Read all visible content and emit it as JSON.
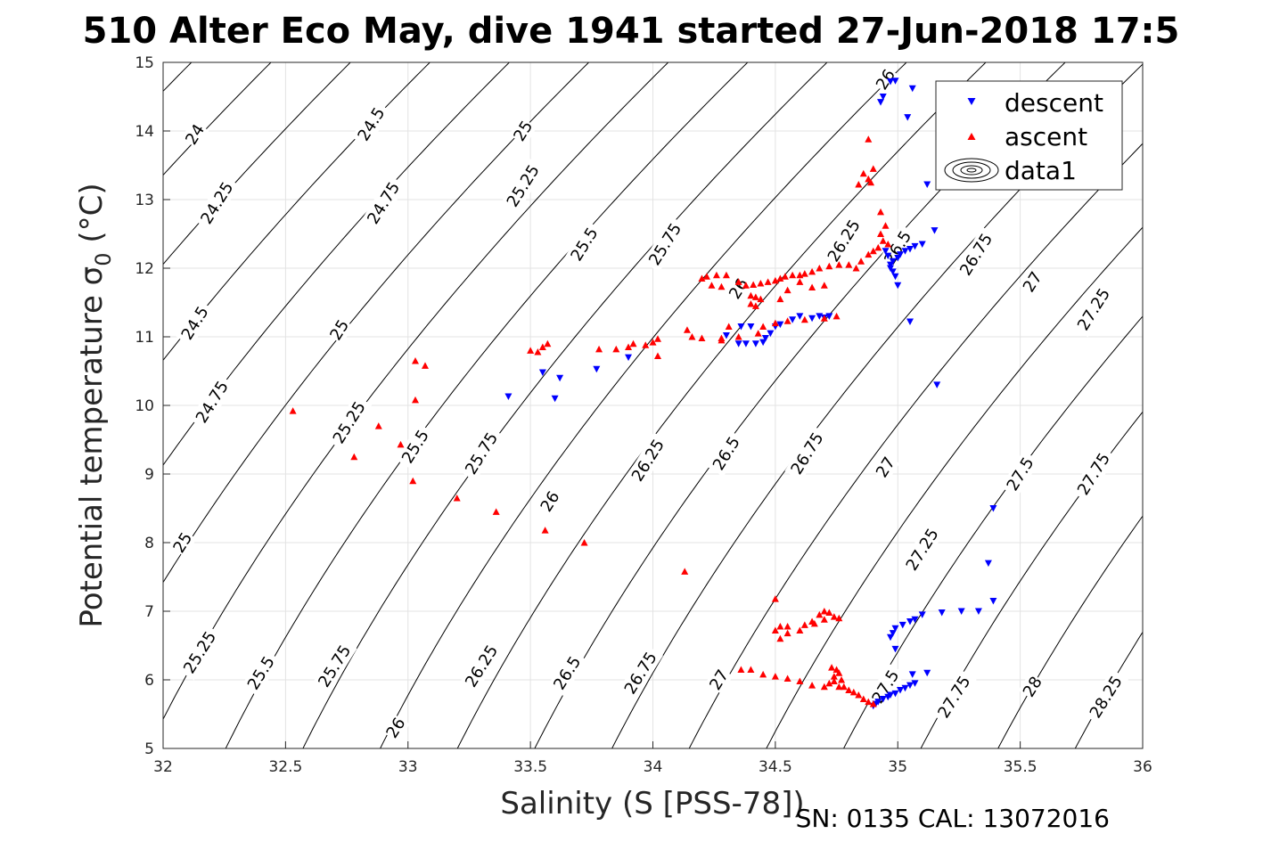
{
  "title": "510 Alter Eco May, dive 1941 started 27-Jun-2018 17:5",
  "footer": "SN: 0135  CAL: 13072016",
  "chart_data": {
    "type": "scatter",
    "xlabel": "Salinity (S [PSS-78])",
    "ylabel": "Potential temperature σ",
    "ylabel_sub": "0",
    "ylabel_unit": " (°C)",
    "xlim": [
      32,
      36
    ],
    "ylim": [
      5,
      15
    ],
    "xticks": [
      "32",
      "32.5",
      "33",
      "33.5",
      "34",
      "34.5",
      "35",
      "35.5",
      "36"
    ],
    "yticks": [
      "5",
      "6",
      "7",
      "8",
      "9",
      "10",
      "11",
      "12",
      "13",
      "14",
      "15"
    ],
    "grid": true,
    "legend_position": "top-right",
    "legend": [
      "descent",
      "ascent",
      "data1"
    ],
    "contours": {
      "levels": [
        "24",
        "24.25",
        "24.5",
        "24.75",
        "25",
        "25.25",
        "25.5",
        "25.75",
        "26",
        "26.25",
        "26.5",
        "26.75",
        "27",
        "27.25",
        "27.5",
        "27.75",
        "28",
        "28.25"
      ],
      "label_positions": [
        [
          "24",
          32.13,
          13.95
        ],
        [
          "24.25",
          32.22,
          12.95
        ],
        [
          "24.5",
          32.13,
          11.2
        ],
        [
          "24.5",
          32.85,
          14.1
        ],
        [
          "24.75",
          32.2,
          10.05
        ],
        [
          "24.75",
          32.9,
          12.95
        ],
        [
          "25",
          32.08,
          8.0
        ],
        [
          "25",
          32.72,
          11.1
        ],
        [
          "25",
          33.47,
          14.0
        ],
        [
          "25.25",
          32.15,
          6.4
        ],
        [
          "25.25",
          32.76,
          9.75
        ],
        [
          "25.25",
          33.47,
          13.2
        ],
        [
          "25.5",
          32.4,
          6.1
        ],
        [
          "25.5",
          33.03,
          9.4
        ],
        [
          "25.5",
          33.72,
          12.35
        ],
        [
          "25.75",
          32.7,
          6.2
        ],
        [
          "25.75",
          33.3,
          9.3
        ],
        [
          "25.75",
          34.05,
          12.35
        ],
        [
          "26",
          32.95,
          5.3
        ],
        [
          "26",
          33.58,
          8.6
        ],
        [
          "26",
          34.35,
          11.7
        ],
        [
          "26",
          34.95,
          14.75
        ],
        [
          "26.25",
          33.3,
          6.2
        ],
        [
          "26.25",
          33.98,
          9.2
        ],
        [
          "26.25",
          34.78,
          12.4
        ],
        [
          "26.5",
          33.65,
          6.1
        ],
        [
          "26.5",
          34.3,
          9.3
        ],
        [
          "26.5",
          35.0,
          12.3
        ],
        [
          "26.75",
          33.95,
          6.1
        ],
        [
          "26.75",
          34.63,
          9.3
        ],
        [
          "26.75",
          35.32,
          12.2
        ],
        [
          "27",
          34.27,
          6.0
        ],
        [
          "27",
          34.95,
          9.1
        ],
        [
          "27",
          35.55,
          11.8
        ],
        [
          "27.25",
          35.1,
          7.9
        ],
        [
          "27.25",
          35.8,
          11.4
        ],
        [
          "27.5",
          34.95,
          5.9
        ],
        [
          "27.5",
          35.5,
          9.0
        ],
        [
          "27.75",
          35.23,
          5.75
        ],
        [
          "27.75",
          35.8,
          9.0
        ],
        [
          "28",
          35.55,
          5.9
        ],
        [
          "28.25",
          35.85,
          5.75
        ]
      ]
    },
    "series": [
      {
        "name": "descent",
        "marker": "triangle-down",
        "color": "#0000ff",
        "points": [
          [
            34.97,
            14.72
          ],
          [
            34.99,
            14.73
          ],
          [
            34.94,
            14.5
          ],
          [
            34.93,
            14.42
          ],
          [
            35.06,
            14.62
          ],
          [
            35.04,
            14.2
          ],
          [
            35.12,
            13.22
          ],
          [
            35.15,
            12.55
          ],
          [
            35.1,
            12.35
          ],
          [
            35.07,
            12.32
          ],
          [
            35.05,
            12.28
          ],
          [
            35.03,
            12.25
          ],
          [
            35.01,
            12.2
          ],
          [
            35.0,
            12.15
          ],
          [
            34.98,
            12.1
          ],
          [
            34.97,
            12.05
          ],
          [
            34.96,
            12.18
          ],
          [
            34.95,
            12.25
          ],
          [
            34.97,
            12.0
          ],
          [
            34.98,
            11.95
          ],
          [
            34.99,
            11.88
          ],
          [
            35.0,
            11.75
          ],
          [
            35.05,
            11.22
          ],
          [
            35.16,
            10.3
          ],
          [
            34.72,
            11.3
          ],
          [
            34.7,
            11.28
          ],
          [
            34.68,
            11.3
          ],
          [
            34.65,
            11.27
          ],
          [
            34.6,
            11.3
          ],
          [
            34.57,
            11.25
          ],
          [
            34.52,
            11.18
          ],
          [
            34.5,
            11.15
          ],
          [
            34.48,
            11.05
          ],
          [
            34.46,
            10.98
          ],
          [
            34.38,
            10.9
          ],
          [
            34.42,
            10.9
          ],
          [
            34.45,
            10.92
          ],
          [
            34.35,
            10.9
          ],
          [
            34.3,
            11.02
          ],
          [
            34.36,
            11.15
          ],
          [
            34.4,
            11.15
          ],
          [
            33.9,
            10.7
          ],
          [
            33.77,
            10.53
          ],
          [
            33.62,
            10.4
          ],
          [
            33.55,
            10.48
          ],
          [
            33.6,
            10.1
          ],
          [
            33.41,
            10.13
          ],
          [
            35.39,
            8.5
          ],
          [
            35.37,
            7.7
          ],
          [
            35.39,
            7.15
          ],
          [
            35.33,
            7.0
          ],
          [
            35.26,
            7.0
          ],
          [
            35.18,
            6.98
          ],
          [
            35.1,
            6.95
          ],
          [
            35.07,
            6.88
          ],
          [
            35.05,
            6.85
          ],
          [
            35.02,
            6.8
          ],
          [
            34.99,
            6.75
          ],
          [
            34.98,
            6.68
          ],
          [
            34.97,
            6.62
          ],
          [
            34.99,
            6.45
          ],
          [
            35.12,
            6.1
          ],
          [
            35.06,
            6.08
          ],
          [
            35.07,
            5.95
          ],
          [
            35.05,
            5.92
          ],
          [
            35.03,
            5.88
          ],
          [
            35.01,
            5.85
          ],
          [
            34.99,
            5.8
          ],
          [
            34.97,
            5.78
          ],
          [
            34.96,
            5.75
          ],
          [
            34.94,
            5.72
          ],
          [
            34.92,
            5.68
          ],
          [
            34.91,
            5.65
          ],
          [
            34.9,
            5.62
          ]
        ]
      },
      {
        "name": "ascent",
        "marker": "triangle-up",
        "color": "#ff0000",
        "points": [
          [
            34.88,
            13.88
          ],
          [
            34.9,
            13.45
          ],
          [
            34.86,
            13.38
          ],
          [
            34.88,
            13.3
          ],
          [
            34.84,
            13.22
          ],
          [
            34.89,
            13.25
          ],
          [
            34.93,
            12.82
          ],
          [
            34.95,
            12.62
          ],
          [
            34.93,
            12.5
          ],
          [
            34.94,
            12.4
          ],
          [
            34.96,
            12.35
          ],
          [
            34.92,
            12.3
          ],
          [
            34.9,
            12.25
          ],
          [
            34.88,
            12.2
          ],
          [
            34.85,
            12.1
          ],
          [
            34.83,
            12.0
          ],
          [
            34.8,
            12.05
          ],
          [
            34.76,
            12.05
          ],
          [
            34.72,
            12.03
          ],
          [
            34.68,
            12.0
          ],
          [
            34.65,
            11.95
          ],
          [
            34.62,
            11.92
          ],
          [
            34.6,
            11.9
          ],
          [
            34.57,
            11.9
          ],
          [
            34.54,
            11.88
          ],
          [
            34.52,
            11.85
          ],
          [
            34.5,
            11.82
          ],
          [
            34.47,
            11.8
          ],
          [
            34.44,
            11.78
          ],
          [
            34.41,
            11.76
          ],
          [
            34.38,
            11.75
          ],
          [
            34.35,
            11.8
          ],
          [
            34.3,
            11.9
          ],
          [
            34.26,
            11.9
          ],
          [
            34.22,
            11.88
          ],
          [
            34.2,
            11.85
          ],
          [
            34.24,
            11.75
          ],
          [
            34.28,
            11.73
          ],
          [
            34.4,
            11.6
          ],
          [
            34.42,
            11.58
          ],
          [
            34.44,
            11.55
          ],
          [
            34.4,
            11.48
          ],
          [
            34.42,
            11.45
          ],
          [
            34.52,
            11.55
          ],
          [
            34.55,
            11.68
          ],
          [
            34.6,
            11.8
          ],
          [
            34.65,
            11.72
          ],
          [
            34.7,
            11.75
          ],
          [
            34.75,
            11.3
          ],
          [
            34.7,
            11.27
          ],
          [
            34.62,
            11.25
          ],
          [
            34.55,
            11.23
          ],
          [
            34.5,
            11.2
          ],
          [
            34.45,
            11.15
          ],
          [
            34.43,
            11.05
          ],
          [
            34.35,
            11.0
          ],
          [
            34.28,
            10.95
          ],
          [
            34.2,
            10.98
          ],
          [
            34.16,
            11.0
          ],
          [
            34.14,
            11.1
          ],
          [
            34.28,
            10.98
          ],
          [
            34.31,
            11.15
          ],
          [
            34.02,
            10.97
          ],
          [
            34.0,
            10.92
          ],
          [
            33.97,
            10.88
          ],
          [
            33.92,
            10.9
          ],
          [
            33.9,
            10.85
          ],
          [
            33.85,
            10.82
          ],
          [
            33.78,
            10.82
          ],
          [
            33.57,
            10.9
          ],
          [
            33.55,
            10.85
          ],
          [
            33.53,
            10.78
          ],
          [
            33.5,
            10.8
          ],
          [
            34.02,
            10.72
          ],
          [
            33.03,
            10.65
          ],
          [
            33.07,
            10.58
          ],
          [
            33.03,
            10.08
          ],
          [
            32.53,
            9.92
          ],
          [
            32.88,
            9.7
          ],
          [
            32.78,
            9.25
          ],
          [
            32.97,
            9.43
          ],
          [
            33.02,
            8.9
          ],
          [
            33.2,
            8.65
          ],
          [
            33.36,
            8.45
          ],
          [
            33.56,
            8.18
          ],
          [
            33.72,
            8.0
          ],
          [
            34.13,
            7.58
          ],
          [
            34.5,
            7.18
          ],
          [
            34.52,
            6.78
          ],
          [
            34.5,
            6.72
          ],
          [
            34.55,
            6.68
          ],
          [
            34.6,
            6.72
          ],
          [
            34.65,
            6.85
          ],
          [
            34.68,
            6.95
          ],
          [
            34.7,
            7.0
          ],
          [
            34.72,
            6.98
          ],
          [
            34.74,
            6.92
          ],
          [
            34.76,
            6.9
          ],
          [
            34.7,
            6.88
          ],
          [
            34.66,
            6.82
          ],
          [
            34.62,
            6.8
          ],
          [
            34.55,
            6.78
          ],
          [
            34.52,
            6.6
          ],
          [
            34.36,
            6.15
          ],
          [
            34.4,
            6.15
          ],
          [
            34.45,
            6.08
          ],
          [
            34.5,
            6.05
          ],
          [
            34.55,
            6.02
          ],
          [
            34.6,
            5.98
          ],
          [
            34.65,
            5.92
          ],
          [
            34.7,
            5.9
          ],
          [
            34.72,
            5.95
          ],
          [
            34.74,
            6.05
          ],
          [
            34.75,
            6.15
          ],
          [
            34.76,
            6.1
          ],
          [
            34.77,
            6.0
          ],
          [
            34.78,
            5.9
          ],
          [
            34.8,
            5.85
          ],
          [
            34.82,
            5.82
          ],
          [
            34.84,
            5.78
          ],
          [
            34.86,
            5.72
          ],
          [
            34.88,
            5.68
          ],
          [
            34.9,
            5.65
          ],
          [
            34.73,
            6.18
          ],
          [
            34.74,
            5.98
          ],
          [
            34.76,
            5.9
          ]
        ]
      }
    ]
  }
}
